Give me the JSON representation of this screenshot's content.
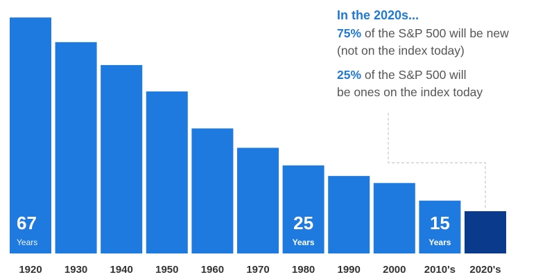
{
  "chart_data": {
    "type": "bar",
    "categories": [
      "1920",
      "1930",
      "1940",
      "1950",
      "1960",
      "1970",
      "1980",
      "1990",
      "2000",
      "2010's",
      "2020's"
    ],
    "values": [
      67,
      60,
      53.5,
      46,
      35.5,
      30,
      25,
      22,
      20,
      15,
      12
    ],
    "ylim": [
      0,
      70
    ],
    "grid": false,
    "legend": "none",
    "colors": {
      "bar": "#1f7ae0",
      "highlight_bar": "#0a3a8c",
      "text_on_bar": "#ffffff",
      "tick_text": "#333333",
      "connector": "#c8c8c8"
    },
    "highlight_category": "2020's",
    "bar_labels": [
      {
        "category": "1920",
        "value": "67",
        "unit": "Years"
      },
      {
        "category": "1980",
        "value": "25",
        "unit": "Years"
      },
      {
        "category": "2010's",
        "value": "15",
        "unit": "Years"
      }
    ]
  },
  "annotation": {
    "heading": "In the 2020s...",
    "line1_pct": "75%",
    "line1_text": " of the S&P 500 will be new",
    "line1_cont": "(not on the index today)",
    "line2_pct": "25%",
    "line2_text": " of the S&P 500 will",
    "line2_cont": "be ones on the index today"
  }
}
